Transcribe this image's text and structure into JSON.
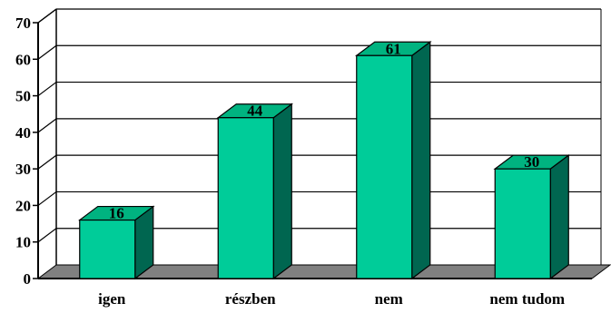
{
  "chart_data": {
    "type": "bar",
    "categories": [
      "igen",
      "részben",
      "nem",
      "nem tudom"
    ],
    "values": [
      16,
      44,
      61,
      30
    ],
    "data_labels": [
      "16",
      "44",
      "61",
      "30"
    ],
    "ylim": [
      0,
      70
    ],
    "yticks": [
      "0",
      "10",
      "20",
      "30",
      "40",
      "50",
      "60",
      "70"
    ],
    "grid": true,
    "style": "3d",
    "colors": {
      "bar_front": "#00cc99",
      "bar_top": "#00b380",
      "bar_side": "#006650",
      "floor": "#808080",
      "grid": "#000000"
    }
  }
}
